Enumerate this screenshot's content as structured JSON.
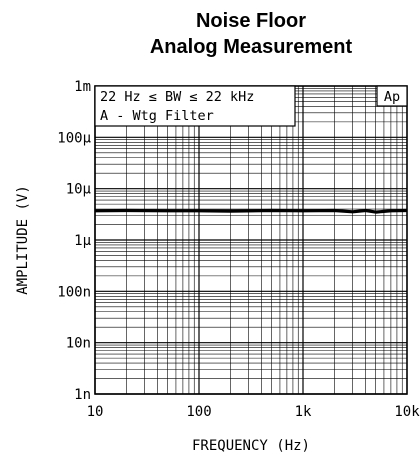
{
  "chart_data": {
    "type": "line",
    "title": "Noise Floor",
    "subtitle": "Analog Measurement",
    "xlabel": "FREQUENCY (Hz)",
    "ylabel": "AMPLITUDE (V)",
    "x_scale": "log",
    "y_scale": "log",
    "xlim": [
      10,
      10000
    ],
    "ylim": [
      1e-09,
      0.001
    ],
    "grid": true,
    "x_ticks": [
      {
        "value": 10,
        "label": "10"
      },
      {
        "value": 100,
        "label": "100"
      },
      {
        "value": 1000,
        "label": "1k"
      },
      {
        "value": 10000,
        "label": "10k"
      }
    ],
    "y_ticks": [
      {
        "value": 0.001,
        "label": "1m"
      },
      {
        "value": 0.0001,
        "label": "100μ"
      },
      {
        "value": 1e-05,
        "label": "10μ"
      },
      {
        "value": 1e-06,
        "label": "1μ"
      },
      {
        "value": 1e-07,
        "label": "100n"
      },
      {
        "value": 1e-08,
        "label": "10n"
      },
      {
        "value": 1e-09,
        "label": "1n"
      }
    ],
    "annotations": {
      "line1": "22 Hz ≤ BW ≤ 22 kHz",
      "line2": "A - Wtg Filter",
      "brand": "Ap"
    },
    "series": [
      {
        "color": "#000000",
        "x": [
          10,
          20,
          50,
          100,
          200,
          500,
          1000,
          2000,
          3000,
          4000,
          5000,
          7000,
          10000
        ],
        "y": [
          3.7e-06,
          3.75e-06,
          3.7e-06,
          3.7e-06,
          3.65e-06,
          3.75e-06,
          3.7e-06,
          3.75e-06,
          3.55e-06,
          3.75e-06,
          3.5e-06,
          3.7e-06,
          3.75e-06
        ]
      }
    ]
  }
}
